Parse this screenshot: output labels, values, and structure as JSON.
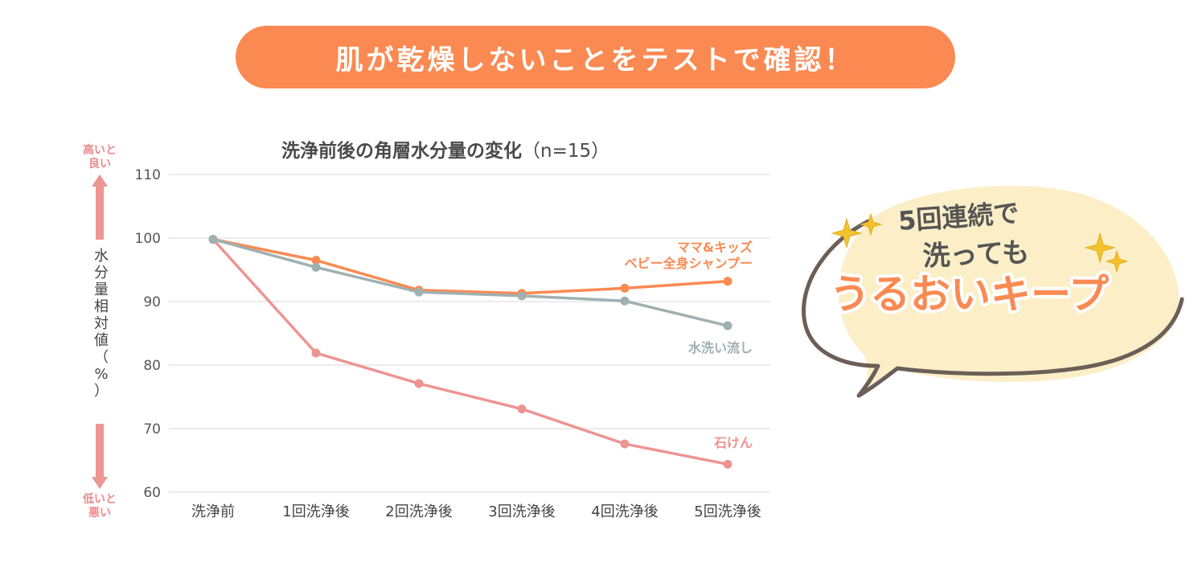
{
  "banner": {
    "text": "肌が乾燥しないことをテストで確認！"
  },
  "chart_data": {
    "type": "line",
    "title": "洗浄前後の角層水分量の変化",
    "title_n": "（n=15）",
    "ylabel": "水分量相対値（%）",
    "ylabel_chars": [
      "水",
      "分",
      "量",
      "相",
      "対",
      "値",
      "（",
      "%",
      "）"
    ],
    "xlabel": "",
    "ylim": [
      60,
      110
    ],
    "yticks": [
      110,
      100,
      90,
      80,
      70,
      60
    ],
    "categories": [
      "洗浄前",
      "1回洗浄後",
      "2回洗浄後",
      "3回洗浄後",
      "4回洗浄後",
      "5回洗浄後"
    ],
    "series": [
      {
        "name": "石けん",
        "label_lines": [
          "石けん"
        ],
        "color": "#ec9593",
        "values": [
          99.8,
          81.9,
          77.1,
          73.1,
          67.6,
          64.4
        ]
      },
      {
        "name": "ママ&キッズ ベビー全身シャンプー",
        "label_lines": [
          "ママ&キッズ",
          "ベビー全身シャンプー"
        ],
        "color": "#fa8a52",
        "values": [
          99.8,
          96.5,
          91.8,
          91.3,
          92.1,
          93.2
        ]
      },
      {
        "name": "水洗い流し",
        "label_lines": [
          "水洗い流し"
        ],
        "color": "#9fb0b0",
        "values": [
          99.8,
          95.4,
          91.5,
          90.9,
          90.1,
          86.2
        ]
      }
    ],
    "arrow_top": {
      "line1": "高いと",
      "line2": "良い"
    },
    "arrow_bottom": {
      "line1": "低いと",
      "line2": "悪い"
    },
    "grid": true
  },
  "callout": {
    "line1": "5回連続で",
    "line2": "洗っても",
    "line3": "うるおいキープ"
  },
  "colors": {
    "banner": "#fa8a52",
    "bubble_fill": "#fcefc8",
    "bubble_stroke": "#6b5f58",
    "sparkle": "#f2c12e"
  }
}
